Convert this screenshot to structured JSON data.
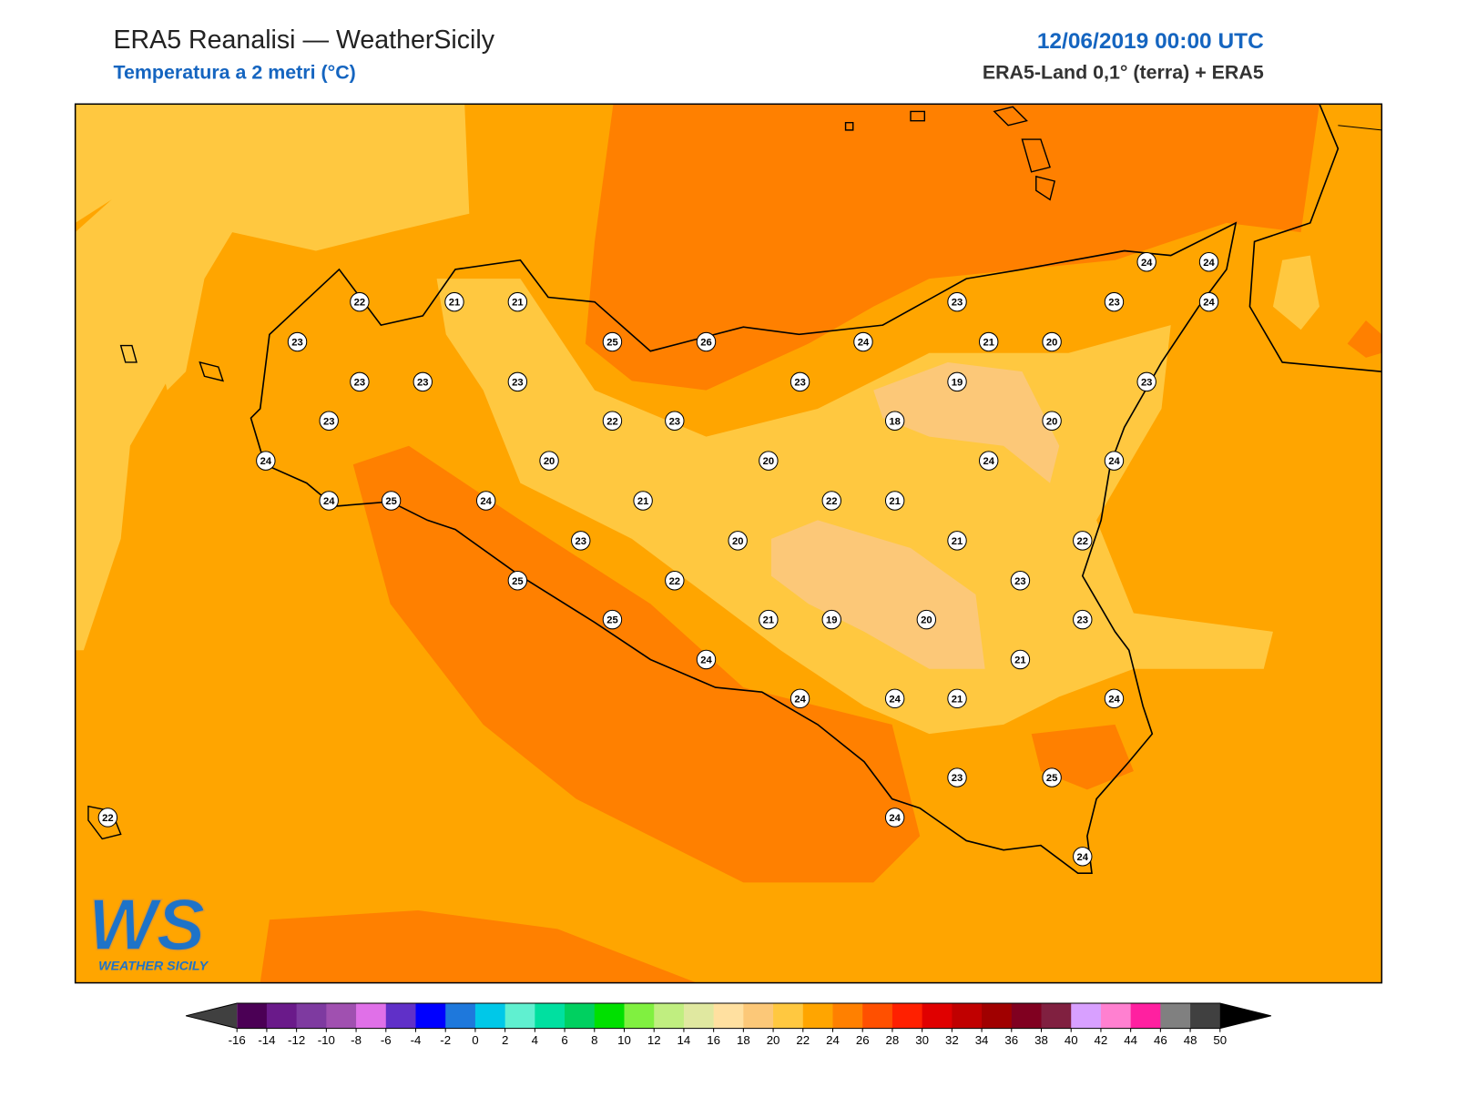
{
  "header": {
    "title": "ERA5 Reanalisi — WeatherSicily",
    "subtitle": "Temperatura a 2 metri (°C)",
    "datetime": "12/06/2019 00:00 UTC",
    "source": "ERA5-Land 0,1° (terra) + ERA5"
  },
  "stations": [
    22,
    21,
    21,
    23,
    25,
    26,
    24,
    23,
    23,
    24,
    24,
    24,
    21,
    20,
    23,
    23,
    23,
    23,
    19,
    23,
    23,
    22,
    23,
    18,
    20,
    24,
    20,
    20,
    24,
    24,
    24,
    25,
    24,
    21,
    22,
    21,
    23,
    20,
    21,
    22,
    25,
    22,
    23,
    25,
    21,
    19,
    20,
    23,
    24,
    21,
    24,
    24,
    21,
    24,
    23,
    25,
    24,
    24,
    22
  ],
  "colorbar": {
    "ticks": [
      -16,
      -14,
      -12,
      -10,
      -8,
      -6,
      -4,
      -2,
      0,
      2,
      4,
      6,
      8,
      10,
      12,
      14,
      16,
      18,
      20,
      22,
      24,
      26,
      28,
      30,
      32,
      34,
      36,
      38,
      40,
      42,
      44,
      46,
      48,
      50
    ],
    "colors": [
      "#4b0055",
      "#6a1a8a",
      "#7e3aa0",
      "#a050b0",
      "#e070e8",
      "#6030c8",
      "#0000ff",
      "#1e78dc",
      "#00c8e8",
      "#60f0d0",
      "#00e0a0",
      "#00d060",
      "#00e000",
      "#80f040",
      "#c0ee80",
      "#e0e8a0",
      "#ffe0a0",
      "#fcc878",
      "#ffc840",
      "#ffa500",
      "#ff8000",
      "#ff5000",
      "#ff2000",
      "#e00000",
      "#c00000",
      "#a00000",
      "#800020",
      "#802040",
      "#d8a0ff",
      "#ff80d0",
      "#ff20a0",
      "#808080",
      "#404040"
    ],
    "under_color": "#404040",
    "over_color": "#000000"
  },
  "logo": {
    "mark": "WS",
    "name": "WEATHER SICILY"
  }
}
